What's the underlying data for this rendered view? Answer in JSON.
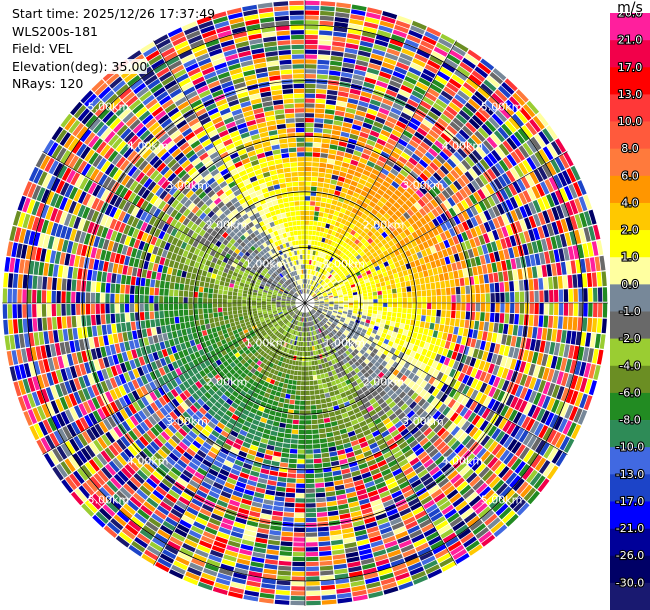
{
  "info": {
    "start_time": "Start time: 2025/12/26 17:37:49",
    "instrument": "WLS200s-181",
    "field": "Field: VEL",
    "elevation": "Elevation(deg): 35.00",
    "nrays": "NRays: 120"
  },
  "colorbar": {
    "unit": "m/s",
    "levels": [
      {
        "label": "26.0",
        "color": "#ff1f9d"
      },
      {
        "label": "21.0",
        "color": "#f2004a"
      },
      {
        "label": "17.0",
        "color": "#ff0000"
      },
      {
        "label": "13.0",
        "color": "#ff3838"
      },
      {
        "label": "10.0",
        "color": "#ff5a3c"
      },
      {
        "label": "8.0",
        "color": "#ff7a3c"
      },
      {
        "label": "6.0",
        "color": "#ff9600"
      },
      {
        "label": "4.0",
        "color": "#ffc800"
      },
      {
        "label": "2.0",
        "color": "#ffff00"
      },
      {
        "label": "1.0",
        "color": "#ffffa0"
      },
      {
        "label": "0.0",
        "color": "#778899"
      },
      {
        "label": "-1.0",
        "color": "#696969"
      },
      {
        "label": "-2.0",
        "color": "#9acd32"
      },
      {
        "label": "-4.0",
        "color": "#6b8e23"
      },
      {
        "label": "-6.0",
        "color": "#228b22"
      },
      {
        "label": "-8.0",
        "color": "#2e8b57"
      },
      {
        "label": "-10.0",
        "color": "#4169e1"
      },
      {
        "label": "-13.0",
        "color": "#1c44c8"
      },
      {
        "label": "-17.0",
        "color": "#0000ff"
      },
      {
        "label": "-21.0",
        "color": "#000099"
      },
      {
        "label": "-26.0",
        "color": "#000066"
      },
      {
        "label": "-30.0",
        "color": "#191970"
      }
    ]
  },
  "chart_data": {
    "type": "ppi",
    "field": "VEL",
    "elevation_deg": 35.0,
    "nrays": 120,
    "range_rings_km": [
      1.0,
      2.0,
      3.0,
      4.0,
      5.0
    ],
    "max_range_km": 5.45,
    "ring_labels": [
      "1.00km",
      "2.00km",
      "3.00km",
      "4.00km",
      "5.00km"
    ],
    "azimuth_spokes_deg": [
      0,
      30,
      60,
      90,
      120,
      150,
      180,
      210,
      240,
      270,
      300,
      330
    ],
    "radial_wind_pattern": {
      "towards_azimuth_deg": 225,
      "away_azimuth_deg": 45,
      "noise_onset_km": 2.6
    }
  }
}
